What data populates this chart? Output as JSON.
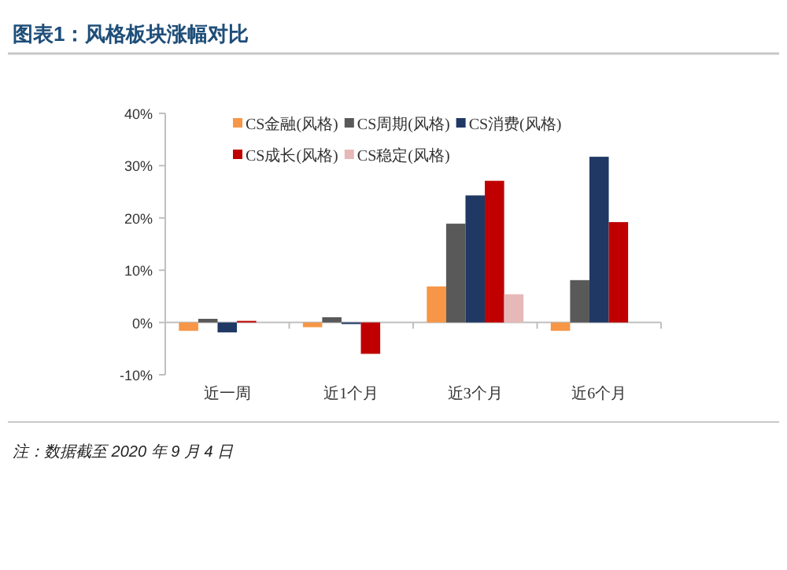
{
  "chart_data": {
    "type": "bar",
    "title": "图表1：风格板块涨幅对比",
    "categories": [
      "近一周",
      "近1个月",
      "近3个月",
      "近6个月"
    ],
    "series": [
      {
        "name": "CS金融(风格)",
        "color": "#f79646",
        "values": [
          -1.6,
          -0.9,
          6.9,
          -1.6
        ]
      },
      {
        "name": "CS周期(风格)",
        "color": "#595959",
        "values": [
          0.7,
          1.0,
          18.9,
          8.1
        ]
      },
      {
        "name": "CS消费(风格)",
        "color": "#1f3864",
        "values": [
          -1.9,
          -0.3,
          24.3,
          31.7
        ]
      },
      {
        "name": "CS成长(风格)",
        "color": "#c00000",
        "values": [
          0.3,
          -6.0,
          27.1,
          19.2
        ]
      },
      {
        "name": "CS稳定(风格)",
        "color": "#e6b9b8",
        "values": [
          null,
          null,
          5.4,
          null
        ]
      }
    ],
    "ylim": [
      -10,
      40
    ],
    "yticks": [
      {
        "value": -10,
        "label": "-10%"
      },
      {
        "value": 0,
        "label": "0%"
      },
      {
        "value": 10,
        "label": "10%"
      },
      {
        "value": 20,
        "label": "20%"
      },
      {
        "value": 30,
        "label": "30%"
      },
      {
        "value": 40,
        "label": "40%"
      }
    ],
    "legend": "top",
    "annotations": [
      "注：数据截至 2020 年 9 月 4 日"
    ]
  }
}
